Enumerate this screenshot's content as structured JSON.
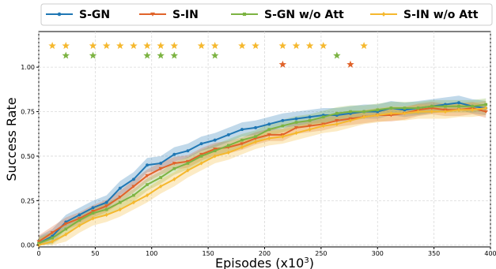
{
  "chart_data": {
    "type": "line",
    "xlabel": "Episodes (x10",
    "xlabel_sup": "3",
    "xlabel_close": ")",
    "ylabel": "Success Rate",
    "xlim": [
      0,
      400
    ],
    "ylim": [
      -0.01,
      1.2
    ],
    "xticks": [
      "0",
      "50",
      "100",
      "150",
      "200",
      "250",
      "300",
      "350",
      "400"
    ],
    "yticks": [
      "0.00",
      "0.25",
      "0.50",
      "0.75",
      "1.00"
    ],
    "grid": true,
    "legend_position": "top",
    "x": [
      0,
      12,
      24,
      36,
      48,
      60,
      72,
      84,
      96,
      108,
      120,
      132,
      144,
      156,
      168,
      180,
      192,
      204,
      216,
      228,
      240,
      252,
      264,
      276,
      288,
      300,
      312,
      324,
      336,
      348,
      360,
      372,
      384,
      396
    ],
    "series": [
      {
        "name": "S-GN",
        "color": "#1f77b4",
        "marker": "circle",
        "values": [
          0.01,
          0.05,
          0.13,
          0.17,
          0.21,
          0.24,
          0.32,
          0.37,
          0.45,
          0.46,
          0.51,
          0.53,
          0.57,
          0.59,
          0.62,
          0.65,
          0.66,
          0.68,
          0.7,
          0.71,
          0.72,
          0.73,
          0.73,
          0.74,
          0.75,
          0.75,
          0.77,
          0.76,
          0.77,
          0.78,
          0.79,
          0.8,
          0.78,
          0.77
        ],
        "band": 0.04,
        "stars": []
      },
      {
        "name": "S-IN",
        "color": "#e0632a",
        "marker": "triangle-down",
        "values": [
          0.02,
          0.07,
          0.12,
          0.15,
          0.19,
          0.22,
          0.27,
          0.33,
          0.39,
          0.43,
          0.46,
          0.47,
          0.51,
          0.54,
          0.55,
          0.57,
          0.6,
          0.62,
          0.62,
          0.66,
          0.67,
          0.68,
          0.7,
          0.71,
          0.72,
          0.73,
          0.73,
          0.74,
          0.76,
          0.77,
          0.76,
          0.76,
          0.77,
          0.75
        ],
        "band": 0.035,
        "stars": [
          216,
          276
        ]
      },
      {
        "name": "S-GN w/o Att",
        "color": "#7cb342",
        "marker": "square",
        "values": [
          0.01,
          0.04,
          0.09,
          0.14,
          0.18,
          0.2,
          0.24,
          0.28,
          0.34,
          0.38,
          0.43,
          0.46,
          0.5,
          0.53,
          0.56,
          0.59,
          0.61,
          0.65,
          0.67,
          0.69,
          0.7,
          0.72,
          0.74,
          0.75,
          0.75,
          0.76,
          0.77,
          0.77,
          0.77,
          0.78,
          0.78,
          0.78,
          0.78,
          0.79
        ],
        "band": 0.035,
        "stars": [
          24,
          48,
          96,
          108,
          120,
          156,
          264
        ]
      },
      {
        "name": "S-IN w/o Att",
        "color": "#f5b82e",
        "marker": "diamond",
        "values": [
          0.0,
          0.02,
          0.06,
          0.11,
          0.15,
          0.17,
          0.2,
          0.24,
          0.28,
          0.33,
          0.37,
          0.42,
          0.46,
          0.5,
          0.52,
          0.55,
          0.58,
          0.6,
          0.61,
          0.63,
          0.65,
          0.67,
          0.68,
          0.7,
          0.72,
          0.73,
          0.74,
          0.74,
          0.75,
          0.75,
          0.75,
          0.76,
          0.76,
          0.77
        ],
        "band": 0.04,
        "stars": [
          12,
          24,
          48,
          60,
          72,
          84,
          96,
          108,
          120,
          144,
          156,
          180,
          192,
          216,
          228,
          240,
          252,
          288
        ]
      }
    ]
  }
}
